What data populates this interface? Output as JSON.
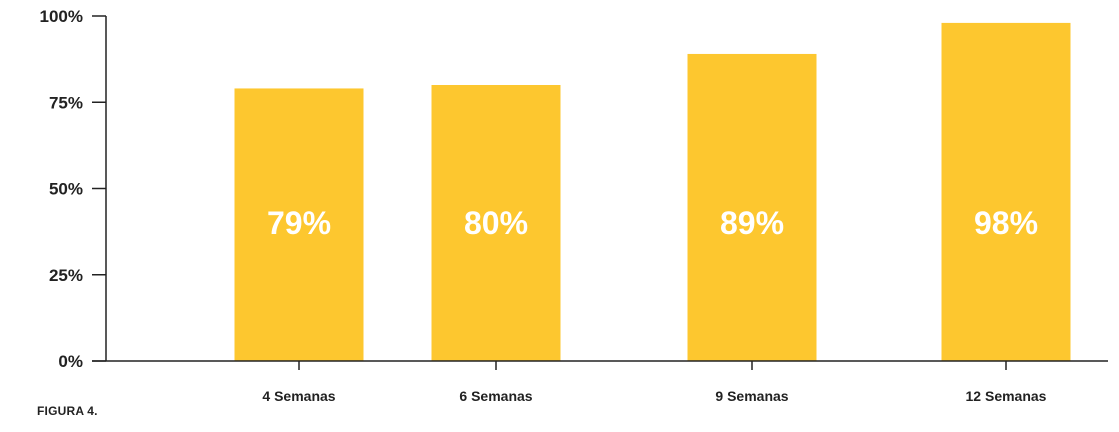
{
  "caption": "FIGURA 4.",
  "colors": {
    "bar": "#FDC72F",
    "axis": "#222222",
    "bar_label": "#FFFFFF",
    "background": "#FFFFFF"
  },
  "chart_data": {
    "type": "bar",
    "title": "",
    "xlabel": "",
    "ylabel": "",
    "categories": [
      "4 Semanas",
      "6 Semanas",
      "9 Semanas",
      "12 Semanas"
    ],
    "values": [
      79,
      80,
      89,
      98
    ],
    "value_labels": [
      "79%",
      "80%",
      "89%",
      "98%"
    ],
    "ylim": [
      0,
      100
    ],
    "yticks": [
      0,
      25,
      50,
      75,
      100
    ],
    "ytick_labels": [
      "0%",
      "25%",
      "50%",
      "75%",
      "100%"
    ],
    "grid": false,
    "legend": "none"
  }
}
